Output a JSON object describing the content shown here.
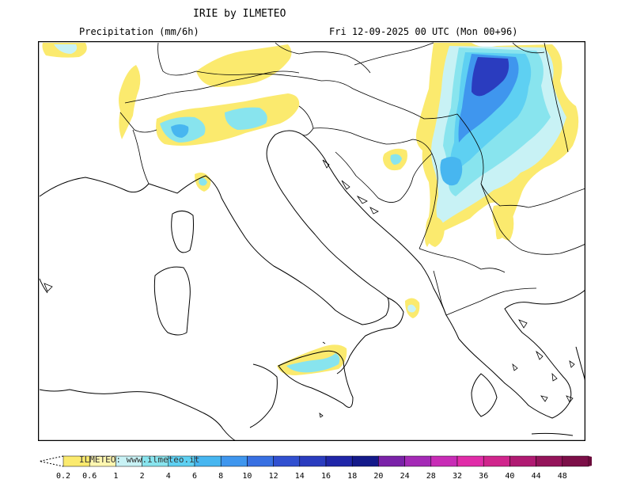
{
  "header": {
    "title": "IRIE by ILMETEO",
    "variable": "Precipitation (mm/6h)",
    "valid_time": "Fri 12-09-2025 00 UTC (Mon 00+96)"
  },
  "colors": {
    "coastline": "#000000",
    "frame": "#000000"
  },
  "precipitation_areas": [
    {
      "region": "north-east Europe (Hungary/Romania/Serbia)",
      "max_class": "16"
    },
    {
      "region": "Alps / northern Italy",
      "max_class": "6"
    },
    {
      "region": "north-east Sicily",
      "max_class": "2"
    },
    {
      "region": "Ligurian coast",
      "max_class": "1"
    },
    {
      "region": "Bosnia",
      "max_class": "2"
    },
    {
      "region": "Gulf of Taranto",
      "max_class": "1"
    }
  ],
  "legend": {
    "watermark": "ILMETEO: www.ilmeteo.it",
    "labels": [
      "0.2",
      "0.6",
      "1",
      "2",
      "4",
      "6",
      "8",
      "10",
      "12",
      "14",
      "16",
      "18",
      "20",
      "24",
      "28",
      "32",
      "36",
      "40",
      "44",
      "48"
    ],
    "colors": [
      "#fbea6e",
      "#fff7b0",
      "#c8f2f5",
      "#88e4ee",
      "#5ed0f2",
      "#47b6f0",
      "#3f96ee",
      "#3870e2",
      "#3150d0",
      "#2a3cbf",
      "#2026a8",
      "#141a8a",
      "#7a22a8",
      "#a42ab6",
      "#c82cb6",
      "#e02ca8",
      "#d0258c",
      "#b01a72",
      "#94145a",
      "#7c0f48",
      "#6a0a3a"
    ]
  }
}
